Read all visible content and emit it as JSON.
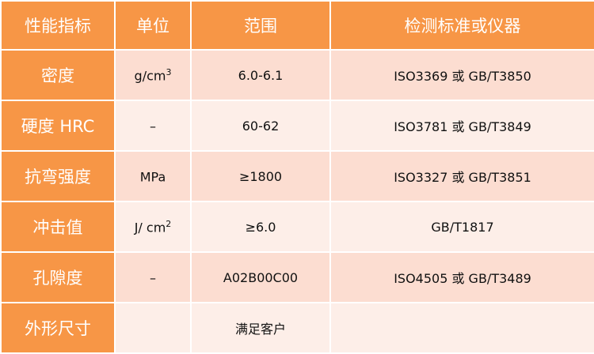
{
  "table": {
    "headers": [
      "性能指标",
      "单位",
      "范围",
      "检测标准或仪器"
    ],
    "rows": [
      {
        "property": "密度",
        "unit": "g/cm",
        "unit_sup": "3",
        "range": "6.0-6.1",
        "standard": "ISO3369 或 GB/T3850"
      },
      {
        "property": "硬度 HRC",
        "unit": "–",
        "unit_sup": "",
        "range": "60-62",
        "standard": "ISO3781 或 GB/T3849"
      },
      {
        "property": "抗弯强度",
        "unit": "MPa",
        "unit_sup": "",
        "range": "≥1800",
        "standard": "ISO3327 或 GB/T3851"
      },
      {
        "property": "冲击值",
        "unit": "J/ cm",
        "unit_sup": "2",
        "range": "≥6.0",
        "standard": "GB/T1817"
      },
      {
        "property": "孔隙度",
        "unit": "–",
        "unit_sup": "",
        "range": "A02B00C00",
        "standard": "ISO4505 或 GB/T3489"
      },
      {
        "property": "外形尺寸",
        "unit": "",
        "unit_sup": "",
        "range": "满足客户",
        "standard": ""
      }
    ]
  },
  "colors": {
    "header": "#F79646",
    "row_odd": "#FCDDD1",
    "row_even": "#FDEEE8"
  }
}
